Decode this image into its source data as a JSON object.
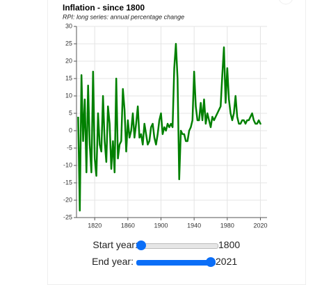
{
  "chart_data": {
    "type": "line",
    "title": "Inflation - since 1800",
    "subtitle": "RPI: long series: annual percentage change",
    "x": [
      1800,
      1802,
      1804,
      1806,
      1808,
      1810,
      1812,
      1814,
      1816,
      1818,
      1820,
      1822,
      1824,
      1826,
      1828,
      1830,
      1832,
      1834,
      1836,
      1838,
      1840,
      1842,
      1844,
      1846,
      1848,
      1850,
      1852,
      1854,
      1856,
      1858,
      1860,
      1862,
      1864,
      1866,
      1868,
      1870,
      1872,
      1874,
      1876,
      1878,
      1880,
      1882,
      1884,
      1886,
      1888,
      1890,
      1892,
      1894,
      1896,
      1898,
      1900,
      1902,
      1904,
      1906,
      1908,
      1910,
      1912,
      1914,
      1916,
      1918,
      1920,
      1922,
      1924,
      1926,
      1928,
      1930,
      1932,
      1934,
      1936,
      1938,
      1940,
      1942,
      1944,
      1946,
      1948,
      1950,
      1952,
      1954,
      1956,
      1958,
      1960,
      1962,
      1964,
      1966,
      1968,
      1970,
      1972,
      1974,
      1976,
      1978,
      1980,
      1982,
      1984,
      1986,
      1988,
      1990,
      1992,
      1994,
      1996,
      1998,
      2000,
      2002,
      2004,
      2006,
      2008,
      2010,
      2012,
      2014,
      2016,
      2018,
      2020,
      2021
    ],
    "series": [
      {
        "name": "RPI",
        "color": "#008000",
        "values": [
          4,
          -23,
          16,
          -3,
          9,
          -12,
          13,
          -4,
          -12,
          17,
          -8,
          -13,
          5,
          -4,
          -6,
          10,
          -3,
          -9,
          7,
          2,
          -11,
          -3,
          -12,
          15,
          -8,
          -4,
          -3,
          12,
          6,
          -6,
          3,
          -2,
          0,
          5,
          -2,
          2,
          7,
          -2,
          -1,
          -4,
          2,
          -1,
          -4,
          -3,
          1,
          2,
          -2,
          -4,
          -1,
          3,
          5,
          -1,
          1,
          0,
          2,
          1,
          2,
          1,
          18,
          25,
          15,
          -14,
          0,
          -1,
          -1,
          -3,
          -3,
          0,
          1,
          3,
          17,
          7,
          3,
          3,
          8,
          3,
          9,
          2,
          5,
          3,
          1,
          4,
          3,
          4,
          5,
          6,
          7,
          16,
          24,
          8,
          18,
          9,
          5,
          3,
          5,
          10,
          4,
          2,
          2,
          3,
          3,
          2,
          3,
          3,
          4,
          5,
          3,
          2,
          2,
          3,
          2,
          2
        ]
      }
    ],
    "xlim": [
      1798,
      2028
    ],
    "ylim": [
      -25,
      30
    ],
    "xticks": [
      1820,
      1860,
      1900,
      1940,
      1980,
      2020
    ],
    "yticks": [
      -25,
      -20,
      -15,
      -10,
      -5,
      0,
      5,
      10,
      15,
      20,
      25,
      30
    ],
    "grid": true
  },
  "controls": {
    "start_year": {
      "label": "Start year:",
      "value": 1800
    },
    "end_year": {
      "label": "End year:",
      "value": 2021
    }
  }
}
